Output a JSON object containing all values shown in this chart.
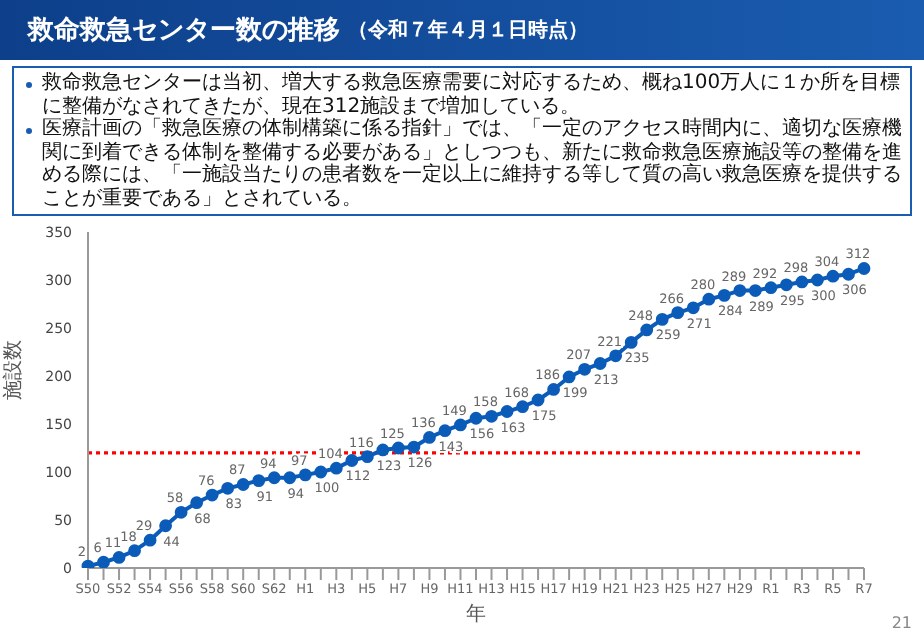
{
  "chart_data": {
    "type": "line",
    "title": "救命救急センター数の推移",
    "subtitle": "（令和７年４月１日時点）",
    "annotations": [
      "救命救急センターは当初、増大する救急医療需要に対応するため、概ね100万人に１か所を目標に整備がなされてきたが、現在312施設まで増加している。",
      "医療計画の「救急医療の体制構築に係る指針」では、「一定のアクセス時間内に、適切な医療機関に到着できる体制を整備する必要がある」としつつも、新たに救命救急医療施設等の整備を進める際には、「一施設当たりの患者数を一定以上に維持する等して質の高い救急医療を提供することが重要である」とされている。",
      "21"
    ],
    "xlabel": "年",
    "ylabel": "施設数",
    "categories": [
      "S50",
      null,
      "S52",
      null,
      "S54",
      null,
      "S56",
      null,
      "S58",
      null,
      "S60",
      null,
      "S62",
      null,
      "H1",
      null,
      "H3",
      null,
      "H5",
      null,
      "H7",
      null,
      "H9",
      null,
      "H11",
      null,
      "H13",
      null,
      "H15",
      null,
      "H17",
      null,
      "H19",
      null,
      "H21",
      null,
      "H23",
      null,
      "H25",
      null,
      "H27",
      null,
      "H29",
      null,
      "R1",
      null,
      "R3",
      null,
      "R5",
      null,
      "R7"
    ],
    "series": [
      {
        "color": "#0b5cb8",
        "values": [
          2,
          6,
          11,
          18,
          29,
          44,
          58,
          68,
          76,
          83,
          87,
          91,
          94,
          94,
          97,
          100,
          104,
          112,
          116,
          123,
          125,
          126,
          136,
          143,
          149,
          156,
          158,
          163,
          168,
          175,
          186,
          199,
          207,
          213,
          221,
          235,
          248,
          259,
          266,
          271,
          280,
          284,
          289,
          289,
          292,
          295,
          298,
          300,
          304,
          306,
          312
        ]
      }
    ],
    "ylim": [
      0,
      350
    ],
    "yticks": [
      0,
      50,
      100,
      150,
      200,
      250,
      300,
      350
    ],
    "ref_lines": [
      {
        "axis": "y",
        "value": 120,
        "color": "#ff0000",
        "line_style": "dotted"
      }
    ],
    "data_labels": true,
    "marker": "circle",
    "line_style": "solid",
    "grid": false,
    "legend": false
  }
}
